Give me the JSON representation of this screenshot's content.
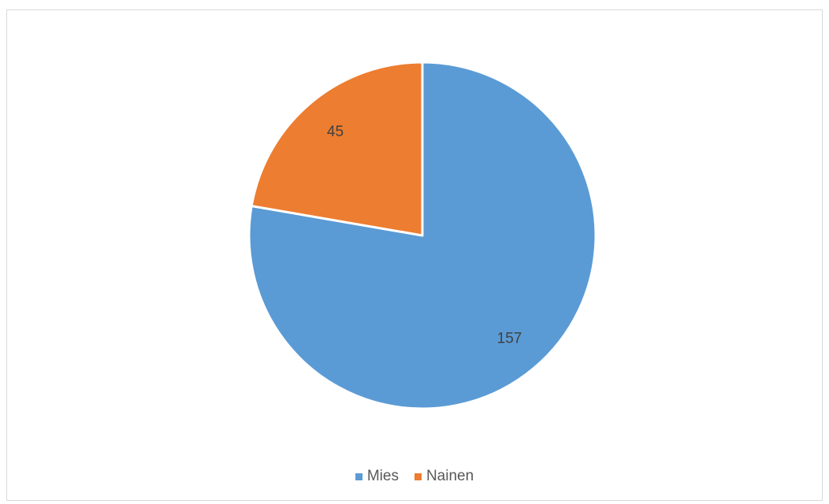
{
  "chart_data": {
    "type": "pie",
    "categories": [
      "Mies",
      "Nainen"
    ],
    "values": [
      157,
      45
    ],
    "colors": [
      "#5b9bd5",
      "#ed7d31"
    ],
    "start_angle_deg": 0,
    "direction": "clockwise",
    "data_labels": [
      "157",
      "45"
    ],
    "legend_position": "bottom"
  }
}
